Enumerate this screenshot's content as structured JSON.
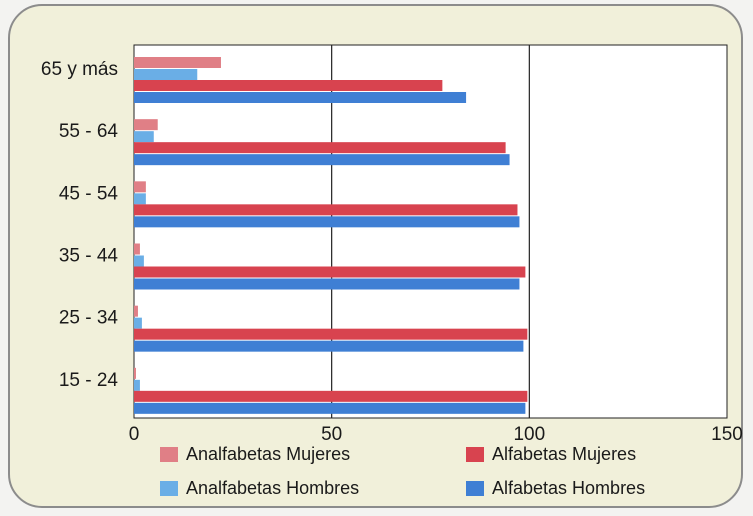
{
  "chart_data": {
    "type": "bar",
    "orientation": "horizontal",
    "categories": [
      "65 y más",
      "55 - 64",
      "45 - 54",
      "35 - 44",
      "25 - 34",
      "15 - 24"
    ],
    "series": [
      {
        "name": "Analfabetas Mujeres",
        "color": "#e07f86",
        "values": [
          22,
          6,
          3,
          1.5,
          1,
          0.5
        ]
      },
      {
        "name": "Analfabetas Hombres",
        "color": "#6aaee6",
        "values": [
          16,
          5,
          3,
          2.5,
          2,
          1.5
        ]
      },
      {
        "name": "Alfabetas Mujeres",
        "color": "#d8434f",
        "values": [
          78,
          94,
          97,
          99,
          99.5,
          99.5
        ]
      },
      {
        "name": "Alfabetas Hombres",
        "color": "#3f7fd4",
        "values": [
          84,
          95,
          97.5,
          97.5,
          98.5,
          99
        ]
      }
    ],
    "x_ticks": [
      0,
      50,
      100,
      150
    ],
    "xlim": [
      0,
      150
    ],
    "grid": "vertical lines at 50 and 100",
    "legend": {
      "position": "bottom",
      "columns": 2
    }
  }
}
